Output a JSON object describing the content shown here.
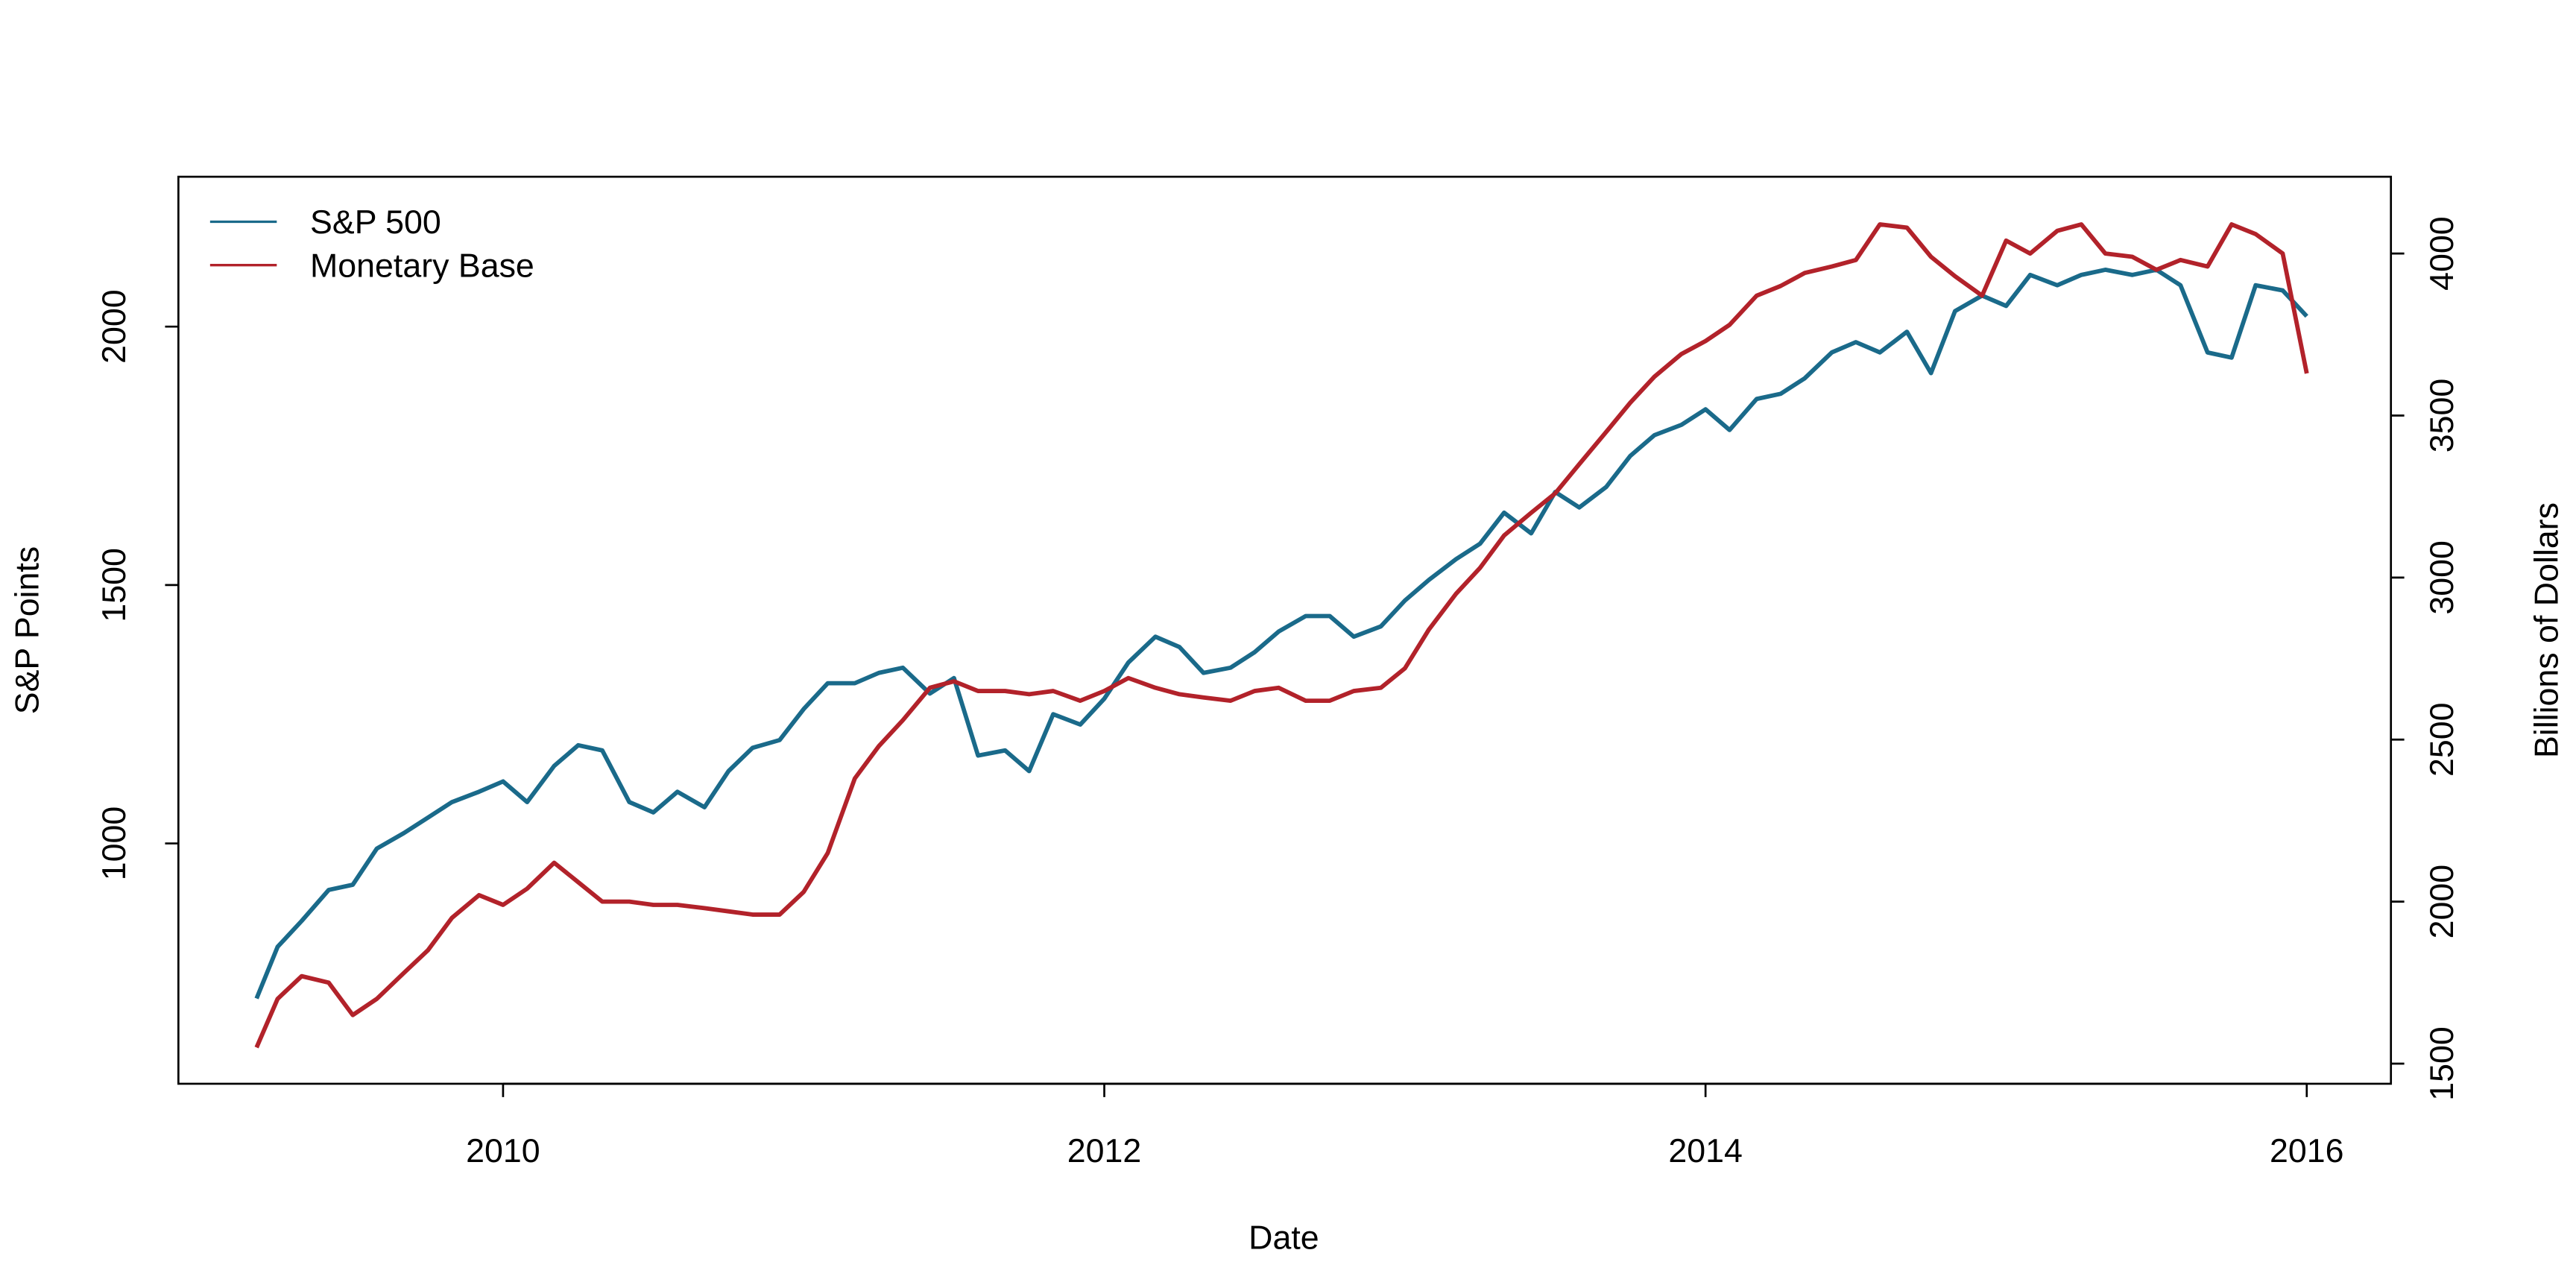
{
  "chart_data": {
    "type": "line",
    "xlabel": "Date",
    "ylabel": "S&P Points",
    "y2label": "Billions of Dollars",
    "x": [
      2009.18,
      2009.25,
      2009.33,
      2009.42,
      2009.5,
      2009.58,
      2009.67,
      2009.75,
      2009.83,
      2009.92,
      2010.0,
      2010.08,
      2010.17,
      2010.25,
      2010.33,
      2010.42,
      2010.5,
      2010.58,
      2010.67,
      2010.75,
      2010.83,
      2010.92,
      2011.0,
      2011.08,
      2011.17,
      2011.25,
      2011.33,
      2011.42,
      2011.5,
      2011.58,
      2011.67,
      2011.75,
      2011.83,
      2011.92,
      2012.0,
      2012.08,
      2012.17,
      2012.25,
      2012.33,
      2012.42,
      2012.5,
      2012.58,
      2012.67,
      2012.75,
      2012.83,
      2012.92,
      2013.0,
      2013.08,
      2013.17,
      2013.25,
      2013.33,
      2013.42,
      2013.5,
      2013.58,
      2013.67,
      2013.75,
      2013.83,
      2013.92,
      2014.0,
      2014.08,
      2014.17,
      2014.25,
      2014.33,
      2014.42,
      2014.5,
      2014.58,
      2014.67,
      2014.75,
      2014.83,
      2014.92,
      2015.0,
      2015.08,
      2015.17,
      2015.25,
      2015.33,
      2015.42,
      2015.5,
      2015.58,
      2015.67,
      2015.75,
      2015.83,
      2015.92,
      2016.0
    ],
    "series": [
      {
        "name": "S&P 500",
        "color": "#1a6a8a",
        "values": [
          700,
          800,
          850,
          910,
          920,
          990,
          1020,
          1050,
          1080,
          1100,
          1120,
          1080,
          1150,
          1190,
          1180,
          1080,
          1060,
          1100,
          1070,
          1140,
          1185,
          1200,
          1260,
          1310,
          1310,
          1330,
          1340,
          1290,
          1320,
          1170,
          1180,
          1140,
          1250,
          1230,
          1280,
          1350,
          1400,
          1380,
          1330,
          1340,
          1370,
          1410,
          1440,
          1440,
          1400,
          1420,
          1470,
          1510,
          1550,
          1580,
          1640,
          1600,
          1680,
          1650,
          1690,
          1750,
          1790,
          1810,
          1840,
          1800,
          1860,
          1870,
          1900,
          1950,
          1970,
          1950,
          1990,
          1910,
          2030,
          2060,
          2040,
          2100,
          2080,
          2100,
          2110,
          2100,
          2110,
          2080,
          1950,
          1940,
          2080,
          2070,
          2020
        ]
      },
      {
        "name": "Monetary Base",
        "color": "#b2222a",
        "axis": "y2",
        "values": [
          1550,
          1700,
          1770,
          1750,
          1650,
          1700,
          1780,
          1850,
          1950,
          2020,
          1990,
          2040,
          2120,
          2060,
          2000,
          2000,
          1990,
          1990,
          1980,
          1970,
          1960,
          1960,
          2030,
          2150,
          2380,
          2480,
          2560,
          2660,
          2680,
          2650,
          2650,
          2640,
          2650,
          2620,
          2650,
          2690,
          2660,
          2640,
          2630,
          2620,
          2650,
          2660,
          2620,
          2620,
          2650,
          2660,
          2720,
          2840,
          2950,
          3030,
          3130,
          3200,
          3260,
          3350,
          3450,
          3540,
          3620,
          3690,
          3730,
          3780,
          3870,
          3900,
          3940,
          3960,
          3980,
          4090,
          4080,
          3990,
          3930,
          3870,
          4040,
          4000,
          4070,
          4090,
          4000,
          3990,
          3950,
          3980,
          3960,
          4090,
          4060,
          4000,
          3630
        ]
      }
    ],
    "xlim": [
      2008.92,
      2016.28
    ],
    "xticks": [
      2010,
      2012,
      2014,
      2016
    ],
    "ylim": [
      535,
      2290
    ],
    "yticks": [
      1000,
      1500,
      2000
    ],
    "y2lim": [
      1438,
      4237
    ],
    "y2ticks": [
      1500,
      2000,
      2500,
      3000,
      3500,
      4000
    ],
    "legend": "top-left",
    "grid": false
  }
}
